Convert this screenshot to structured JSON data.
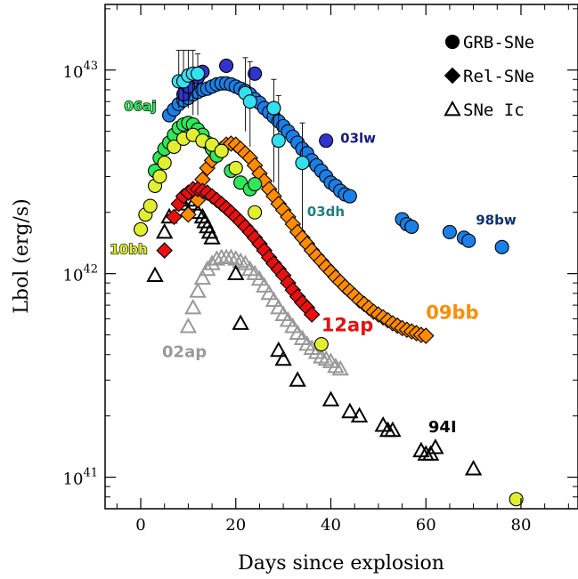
{
  "chart_data": {
    "type": "scatter",
    "xlabel": "Days since explosion",
    "ylabel": "Lbol (erg/s)",
    "xlim": [
      -7.5,
      92
    ],
    "ylim": [
      7e+40,
      2.1e+43
    ],
    "y_scale": "log",
    "x_ticks": [
      0,
      20,
      40,
      60,
      80
    ],
    "y_tick_labels": [
      {
        "value": 1e+43,
        "base": "10",
        "exp": "43"
      },
      {
        "value": 1e+42,
        "base": "10",
        "exp": "42"
      },
      {
        "value": 1e+41,
        "base": "10",
        "exp": "41"
      }
    ],
    "legend": {
      "placement": "top-right",
      "entries": [
        {
          "label": "GRB-SNe",
          "marker": "circle"
        },
        {
          "label": "Rel-SNe",
          "marker": "diamond"
        },
        {
          "label": "SNe Ic",
          "marker": "triangle"
        }
      ]
    },
    "series": [
      {
        "name": "98bw",
        "class": "GRB-SNe",
        "marker": "circle",
        "color": "#1a7fe6",
        "x": [
          6,
          7,
          8,
          9,
          10,
          11,
          12,
          13,
          14,
          15,
          16,
          17,
          18,
          19,
          20,
          21,
          22,
          23,
          24,
          25,
          26,
          27,
          28,
          29,
          30,
          31,
          32,
          33,
          34,
          35,
          36,
          37,
          38,
          39,
          40,
          41,
          42,
          43,
          44,
          55,
          56,
          57,
          65,
          68,
          69,
          76
        ],
        "y": [
          6e+42,
          6.4e+42,
          6.8e+42,
          7.1e+42,
          7.3e+42,
          7.6e+42,
          7.8e+42,
          8e+42,
          8.1e+42,
          8.3e+42,
          8.5e+42,
          8.6e+42,
          8.6e+42,
          8.5e+42,
          8.3e+42,
          8.1e+42,
          7.9e+42,
          7.6e+42,
          7.2e+42,
          6.9e+42,
          6.5e+42,
          6.2e+42,
          5.9e+42,
          5.6e+42,
          5.3e+42,
          5e+42,
          4.7e+42,
          4.4e+42,
          4.1e+42,
          3.9e+42,
          3.6e+42,
          3.4e+42,
          3.2e+42,
          3e+42,
          2.8e+42,
          2.7e+42,
          2.55e+42,
          2.45e+42,
          2.4e+42,
          1.85e+42,
          1.75e+42,
          1.7e+42,
          1.6e+42,
          1.5e+42,
          1.45e+42,
          1.35e+42
        ]
      },
      {
        "name": "03lw",
        "class": "GRB-SNe",
        "marker": "circle",
        "color": "#3333cc",
        "x": [
          9,
          10,
          12,
          13,
          18,
          24,
          39
        ],
        "y": [
          7.6e+42,
          8.3e+42,
          9.2e+42,
          9.8e+42,
          1.05e+43,
          9.6e+42,
          4.5e+42
        ]
      },
      {
        "name": "03dh",
        "class": "GRB-SNe",
        "marker": "circle",
        "color": "#33e0f0",
        "x": [
          8,
          9,
          10,
          11,
          12,
          22,
          23,
          28,
          29,
          34
        ],
        "y": [
          8.8e+42,
          8.8e+42,
          9.4e+42,
          9.6e+42,
          9.6e+42,
          7.7e+42,
          7e+42,
          6.5e+42,
          4.5e+42,
          3.5e+42
        ],
        "err_up": [
          1.25e+43,
          1.25e+43,
          1.25e+43,
          1.25e+43,
          1.2e+43,
          1.15e+43,
          1.1e+43,
          9e+42,
          7.5e+42,
          5.5e+42
        ],
        "err_down": [
          6.5e+42,
          6.5e+42,
          6.5e+42,
          6e+42,
          6e+42,
          5e+42,
          4.2e+42,
          2.8e+42,
          2e+42,
          1.5e+42
        ]
      },
      {
        "name": "06aj",
        "class": "GRB-SNe",
        "marker": "circle",
        "color": "#2ee85a",
        "x": [
          3,
          4,
          5,
          6,
          7,
          8,
          9,
          10,
          11,
          12,
          13,
          14,
          15,
          16,
          19,
          21,
          23,
          24
        ],
        "y": [
          3.2e+42,
          3.7e+42,
          4.1e+42,
          4.4e+42,
          4.8e+42,
          5.2e+42,
          5.4e+42,
          5.5e+42,
          5.4e+42,
          5.1e+42,
          4.8e+42,
          4.4e+42,
          4.1e+42,
          3.8e+42,
          3.2e+42,
          2.8e+42,
          2.6e+42,
          2.75e+42
        ]
      },
      {
        "name": "10bh",
        "class": "GRB-SNe",
        "marker": "circle",
        "color": "#e0f030",
        "x": [
          0,
          1,
          2,
          3,
          4,
          5,
          7,
          9,
          11,
          13,
          15,
          17,
          20,
          24,
          38,
          79
        ],
        "y": [
          1.65e+42,
          1.95e+42,
          2.15e+42,
          2.7e+42,
          3e+42,
          3.5e+42,
          4.2e+42,
          4.6e+42,
          4.8e+42,
          4.5e+42,
          4.3e+42,
          4e+42,
          3.3e+42,
          2e+42,
          4.5e+41,
          7.8e+40
        ]
      },
      {
        "name": "09bb",
        "class": "Rel-SNe",
        "marker": "diamond",
        "color": "#ff8c00",
        "x": [
          10,
          12,
          13,
          14,
          15,
          16,
          17,
          18,
          19,
          20,
          21,
          22,
          23,
          24,
          25,
          26,
          27,
          28,
          29,
          30,
          31,
          32,
          33,
          34,
          35,
          36,
          37,
          38,
          39,
          40,
          41,
          42,
          43,
          44,
          45,
          46,
          47,
          48,
          49,
          50,
          51,
          52,
          53,
          54,
          55,
          56,
          57,
          58,
          59,
          60
        ],
        "y": [
          1.95e+42,
          2.3e+42,
          2.9e+42,
          3.3e+42,
          3.6e+42,
          3.9e+42,
          4.1e+42,
          4.3e+42,
          4.35e+42,
          4.3e+42,
          4.1e+42,
          3.9e+42,
          3.7e+42,
          3.4e+42,
          3.1e+42,
          2.85e+42,
          2.6e+42,
          2.4e+42,
          2.2e+42,
          2.05e+42,
          1.9e+42,
          1.75e+42,
          1.6e+42,
          1.5e+42,
          1.4e+42,
          1.3e+42,
          1.22e+42,
          1.15e+42,
          1.08e+42,
          1.02e+42,
          9.6e+41,
          9.1e+41,
          8.6e+41,
          8.2e+41,
          7.8e+41,
          7.4e+41,
          7.1e+41,
          6.8e+41,
          6.5e+41,
          6.3e+41,
          6.1e+41,
          5.9e+41,
          5.7e+41,
          5.55e+41,
          5.4e+41,
          5.3e+41,
          5.2e+41,
          5.1e+41,
          5e+41,
          4.95e+41
        ]
      },
      {
        "name": "12ap",
        "class": "Rel-SNe",
        "marker": "diamond",
        "color": "#e81010",
        "x": [
          5,
          7,
          8,
          9,
          10,
          11,
          12,
          13,
          14,
          15,
          16,
          17,
          18,
          19,
          20,
          21,
          22,
          23,
          24,
          25,
          26,
          27,
          28,
          29,
          30,
          31,
          32,
          33,
          34,
          35,
          36
        ],
        "y": [
          1.3e+42,
          1.9e+42,
          2.2e+42,
          2.4e+42,
          2.5e+42,
          2.6e+42,
          2.6e+42,
          2.55e+42,
          2.5e+42,
          2.4e+42,
          2.3e+42,
          2.2e+42,
          2.1e+42,
          2e+42,
          1.9e+42,
          1.8e+42,
          1.7e+42,
          1.6e+42,
          1.5e+42,
          1.4e+42,
          1.3e+42,
          1.2e+42,
          1.12e+42,
          1.05e+42,
          9.8e+41,
          9e+41,
          8.3e+41,
          7.7e+41,
          7.2e+41,
          6.8e+41,
          6.3e+41
        ]
      },
      {
        "name": "94I",
        "class": "SNe Ic",
        "marker": "triangle",
        "color": "#000000",
        "x": [
          3,
          5,
          6,
          9,
          10,
          11,
          12,
          13,
          13.5,
          14,
          14.5,
          15,
          20,
          21,
          29,
          30,
          33,
          40,
          44,
          46,
          51,
          52,
          53,
          59,
          60,
          61,
          62,
          70
        ],
        "y": [
          9.8e+41,
          1.6e+42,
          1.9e+42,
          2.2e+42,
          2.3e+42,
          2.2e+42,
          2e+42,
          1.9e+42,
          1.8e+42,
          1.7e+42,
          1.6e+42,
          1.5e+42,
          1e+42,
          5.7e+41,
          4.2e+41,
          3.8e+41,
          3e+41,
          2.4e+41,
          2.1e+41,
          2e+41,
          1.8e+41,
          1.7e+41,
          1.7e+41,
          1.35e+41,
          1.3e+41,
          1.3e+41,
          1.4e+41,
          1.1e+41
        ]
      },
      {
        "name": "02ap",
        "class": "SNe Ic",
        "marker": "triangle",
        "color": "#999999",
        "x": [
          10,
          11,
          12,
          13,
          14,
          15,
          16,
          17,
          18,
          19,
          20,
          21,
          22,
          23,
          24,
          25,
          26,
          27,
          28,
          29,
          30,
          31,
          32,
          33,
          34,
          35,
          36,
          37,
          38,
          39,
          40,
          41,
          42
        ],
        "y": [
          5.5e+41,
          6.8e+41,
          8.2e+41,
          9.5e+41,
          1.05e+42,
          1.12e+42,
          1.18e+42,
          1.2e+42,
          1.2e+42,
          1.2e+42,
          1.18e+42,
          1.15e+42,
          1.12e+42,
          1.05e+42,
          1e+42,
          9.4e+41,
          8.7e+41,
          8e+41,
          7.4e+41,
          6.8e+41,
          6.3e+41,
          5.9e+41,
          5.5e+41,
          5.1e+41,
          4.8e+41,
          4.5e+41,
          4.3e+41,
          4.1e+41,
          3.9e+41,
          3.8e+41,
          3.7e+41,
          3.5e+41,
          3.4e+41
        ]
      }
    ],
    "annotations": [
      {
        "text": "03lw",
        "x": 42,
        "y": 4.4e+42,
        "color": "#1a1a80",
        "size": 15,
        "style": "label"
      },
      {
        "text": "06aj",
        "x": -3.5,
        "y": 6.3e+42,
        "color": "#2ee85a",
        "size": 15,
        "style": "outlined"
      },
      {
        "text": "03dh",
        "x": 35,
        "y": 1.92e+42,
        "color": "#1f7f80",
        "size": 15,
        "style": "label"
      },
      {
        "text": "98bw",
        "x": 70.5,
        "y": 1.74e+42,
        "color": "#103070",
        "size": 15,
        "style": "label"
      },
      {
        "text": "10bh",
        "x": -6.5,
        "y": 1.25e+42,
        "color": "#e0f030",
        "size": 15,
        "style": "outlined"
      },
      {
        "text": "09bb",
        "x": 60,
        "y": 6e+41,
        "color": "#ff8c00",
        "size": 21,
        "style": "label"
      },
      {
        "text": "12ap",
        "x": 38,
        "y": 5.2e+41,
        "color": "#e81010",
        "size": 21,
        "style": "label"
      },
      {
        "text": "02ap",
        "x": 4.5,
        "y": 3.9e+41,
        "color": "#999999",
        "size": 18,
        "style": "label"
      },
      {
        "text": "94I",
        "x": 60.5,
        "y": 1.66e+41,
        "color": "#000000",
        "size": 18,
        "style": "label"
      }
    ]
  }
}
